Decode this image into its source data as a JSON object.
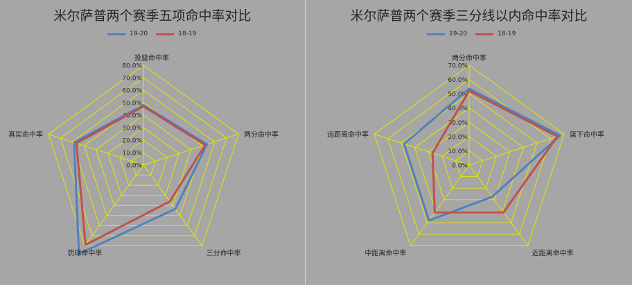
{
  "colors": {
    "background": "#a6a6a6",
    "grid": "#e6e600",
    "series_19_20": "#4f81bd",
    "series_18_19": "#c0504d",
    "divider": "#d9d9d9"
  },
  "chart_data": [
    {
      "type": "radar",
      "title": "米尔萨普两个赛季五项命中率对比",
      "axes": [
        "投篮命中率",
        "两分命中率",
        "三分命中率",
        "罚球命中率",
        "真实命中率"
      ],
      "tick_labels": [
        "0.0%",
        "10.0%",
        "20.0%",
        "30.0%",
        "40.0%",
        "50.0%",
        "60.0%",
        "70.0%",
        "80.0%"
      ],
      "rlim": [
        0,
        80
      ],
      "grid": true,
      "legend_position": "top",
      "series": [
        {
          "name": "19-20",
          "color": "#4f81bd",
          "values": [
            48.0,
            53.5,
            43.5,
            88.0,
            58.5
          ]
        },
        {
          "name": "18-19",
          "color": "#c0504d",
          "values": [
            47.0,
            52.0,
            36.0,
            79.0,
            56.5
          ]
        }
      ]
    },
    {
      "type": "radar",
      "title": "米尔萨普两个赛季三分线以内命中率对比",
      "axes": [
        "两分命中率",
        "篮下命中率",
        "近距离命中率",
        "中距离命中率",
        "远距离命中率"
      ],
      "tick_labels": [
        "0.0%",
        "10.0%",
        "20.0%",
        "30.0%",
        "40.0%",
        "50.0%",
        "60.0%",
        "70.0%"
      ],
      "rlim": [
        0,
        70
      ],
      "grid": true,
      "legend_position": "top",
      "series": [
        {
          "name": "19-20",
          "color": "#4f81bd",
          "values": [
            53.5,
            67.0,
            27.5,
            48.0,
            48.0
          ]
        },
        {
          "name": "18-19",
          "color": "#c0504d",
          "values": [
            52.0,
            65.0,
            41.0,
            41.0,
            27.0
          ]
        }
      ]
    }
  ]
}
